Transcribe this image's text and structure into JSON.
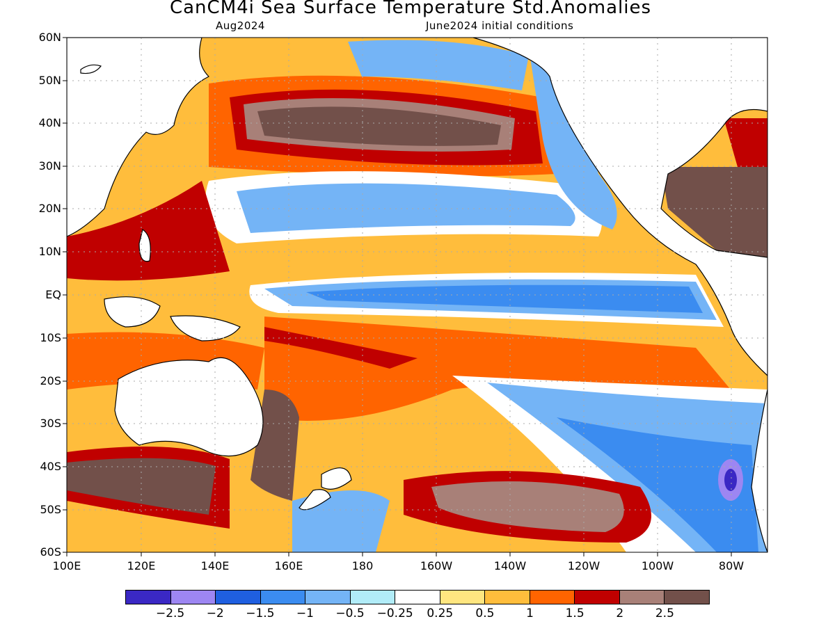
{
  "header": {
    "title": "CanCM4i Sea Surface Temperature Std.Anomalies",
    "valid_month": "Aug2024",
    "initial_conditions": "June2024 initial conditions"
  },
  "map": {
    "region": {
      "lon_min": 100,
      "lon_max": 290,
      "lat_min": -60,
      "lat_max": 60
    },
    "lat_ticks": [
      "60N",
      "50N",
      "40N",
      "30N",
      "20N",
      "10N",
      "EQ",
      "10S",
      "20S",
      "30S",
      "40S",
      "50S",
      "60S"
    ],
    "lon_ticks": [
      "100E",
      "120E",
      "140E",
      "160E",
      "180",
      "160W",
      "140W",
      "120W",
      "100W",
      "80W"
    ],
    "land_color": "#ffffff",
    "grid": "dotted"
  },
  "colorbar": {
    "colors": [
      "#3a28c4",
      "#9d86f2",
      "#1f5fe0",
      "#3b8cf0",
      "#74b4f6",
      "#b1ecf8",
      "#ffffff",
      "#ffe680",
      "#ffbd3c",
      "#ff6400",
      "#c00000",
      "#a88078",
      "#72504a"
    ],
    "labels": [
      "−2.5",
      "−2",
      "−1.5",
      "−1",
      "−0.5",
      "−0.25",
      "0.25",
      "0.5",
      "1",
      "1.5",
      "2",
      "2.5"
    ]
  }
}
